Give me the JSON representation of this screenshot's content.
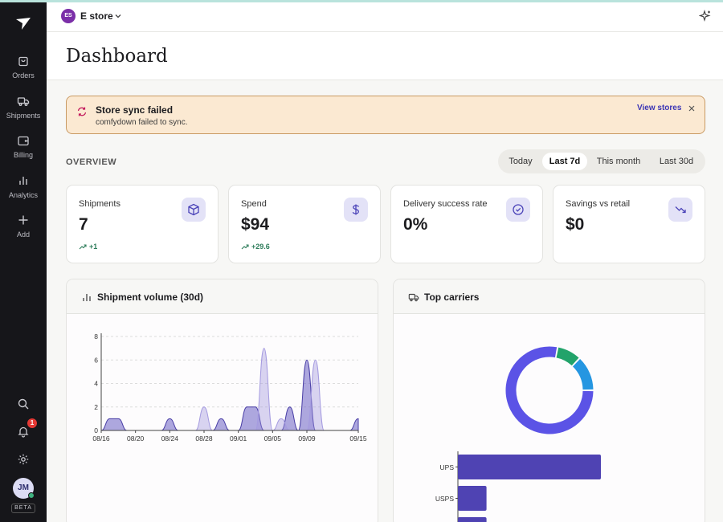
{
  "sidebar": {
    "items": [
      {
        "label": "Orders",
        "icon": "shopping-bag-icon"
      },
      {
        "label": "Shipments",
        "icon": "truck-icon"
      },
      {
        "label": "Billing",
        "icon": "wallet-icon"
      },
      {
        "label": "Analytics",
        "icon": "bar-chart-icon"
      },
      {
        "label": "Add",
        "icon": "plus-icon"
      }
    ],
    "notification_count": "1",
    "user_initials": "JM",
    "beta_label": "BETA"
  },
  "header": {
    "store_initials": "ES",
    "store_name": "E store"
  },
  "page": {
    "title": "Dashboard"
  },
  "alert": {
    "title": "Store sync failed",
    "message": "comfydown failed to sync.",
    "link": "View stores"
  },
  "overview": {
    "label": "OVERVIEW",
    "ranges": [
      {
        "label": "Today",
        "active": false
      },
      {
        "label": "Last 7d",
        "active": true
      },
      {
        "label": "This month",
        "active": false
      },
      {
        "label": "Last 30d",
        "active": false
      }
    ]
  },
  "stats": [
    {
      "label": "Shipments",
      "value": "7",
      "delta": "+1",
      "icon": "package-icon"
    },
    {
      "label": "Spend",
      "value": "$94",
      "delta": "+29.6",
      "icon": "dollar-icon"
    },
    {
      "label": "Delivery success rate",
      "value": "0%",
      "delta": "",
      "icon": "check-circle-icon"
    },
    {
      "label": "Savings vs retail",
      "value": "$0",
      "delta": "",
      "icon": "trend-down-icon"
    }
  ],
  "colors": {
    "accent": "#3b35b5",
    "alert_bg": "#fbe9d2",
    "success": "#2e7d5b"
  },
  "chart_data": [
    {
      "type": "area",
      "title": "Shipment volume (30d)",
      "x": [
        "08/16",
        "08/17",
        "08/18",
        "08/19",
        "08/20",
        "08/21",
        "08/22",
        "08/23",
        "08/24",
        "08/25",
        "08/26",
        "08/27",
        "08/28",
        "08/29",
        "08/30",
        "08/31",
        "09/01",
        "09/02",
        "09/03",
        "09/04",
        "09/05",
        "09/06",
        "09/07",
        "09/08",
        "09/09",
        "09/10",
        "09/11",
        "09/12",
        "09/13",
        "09/14",
        "09/15"
      ],
      "x_ticks": [
        "08/16",
        "08/20",
        "08/24",
        "08/28",
        "09/01",
        "09/05",
        "09/09",
        "09/15"
      ],
      "series": [
        {
          "values": [
            0,
            1,
            1,
            0,
            0,
            0,
            0,
            0,
            1,
            0,
            0,
            0,
            0,
            0,
            1,
            0,
            0,
            2,
            2,
            0,
            0,
            0,
            2,
            0,
            6,
            0,
            0,
            0,
            0,
            0,
            1
          ]
        },
        {
          "values": [
            0,
            0,
            0,
            0,
            0,
            0,
            0,
            0,
            0,
            0,
            0,
            0,
            2,
            0,
            0,
            0,
            0,
            0,
            0,
            7,
            0,
            1,
            0,
            0,
            0,
            6,
            0,
            0,
            0,
            0,
            0
          ]
        }
      ],
      "ylim": [
        0,
        8
      ],
      "y_ticks": [
        0,
        2,
        4,
        6,
        8
      ],
      "grid": true
    },
    {
      "type": "pie",
      "title": "Top carriers",
      "donut": [
        {
          "value": 78,
          "color": "#5b53e6"
        },
        {
          "value": 9,
          "color": "#22a36a"
        },
        {
          "value": 13,
          "color": "#2596e1"
        }
      ]
    },
    {
      "type": "bar",
      "orientation": "horizontal",
      "categories": [
        "UPS",
        "USPS",
        ""
      ],
      "values": [
        5,
        1,
        1
      ]
    }
  ]
}
